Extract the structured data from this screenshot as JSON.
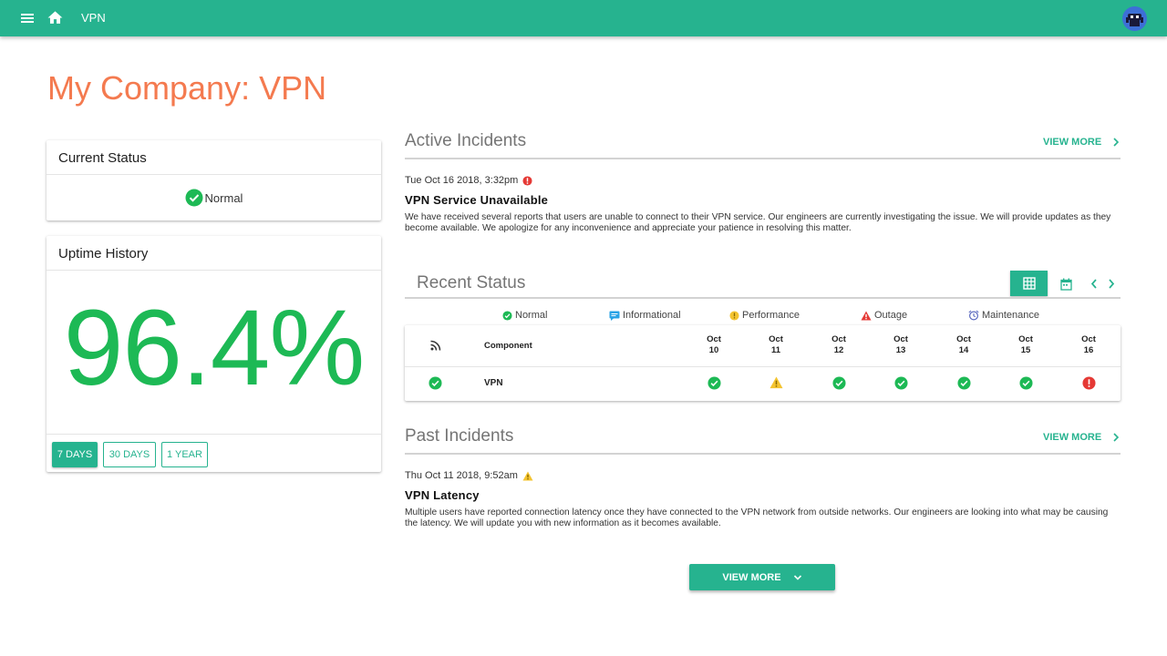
{
  "topbar": {
    "title": "VPN"
  },
  "page": {
    "title": "My Company: VPN"
  },
  "current_status": {
    "heading": "Current Status",
    "value": "Normal"
  },
  "uptime": {
    "heading": "Uptime History",
    "value": "96.4%",
    "ranges": [
      {
        "label": "7 DAYS",
        "active": true
      },
      {
        "label": "30 DAYS",
        "active": false
      },
      {
        "label": "1 YEAR",
        "active": false
      }
    ]
  },
  "active_incidents": {
    "heading": "Active Incidents",
    "view_more": "VIEW MORE",
    "incident": {
      "date": "Tue Oct 16 2018, 3:32pm",
      "title": "VPN Service Unavailable",
      "description": "We have received several reports that users are unable to connect to their VPN service. Our engineers are currently investigating the issue. We will provide updates as they become available. We apologize for any inconvenience and appreciate your patience in resolving this matter."
    }
  },
  "recent_status": {
    "heading": "Recent Status",
    "legend": [
      "Normal",
      "Informational",
      "Performance",
      "Outage",
      "Maintenance"
    ],
    "table": {
      "component_header": "Component",
      "dates": [
        {
          "month": "Oct",
          "day": "10"
        },
        {
          "month": "Oct",
          "day": "11"
        },
        {
          "month": "Oct",
          "day": "12"
        },
        {
          "month": "Oct",
          "day": "13"
        },
        {
          "month": "Oct",
          "day": "14"
        },
        {
          "month": "Oct",
          "day": "15"
        },
        {
          "month": "Oct",
          "day": "16"
        }
      ],
      "rows": [
        {
          "component": "VPN",
          "current": "normal",
          "statuses": [
            "normal",
            "performance",
            "normal",
            "normal",
            "normal",
            "normal",
            "outage"
          ]
        }
      ]
    }
  },
  "past_incidents": {
    "heading": "Past Incidents",
    "view_more": "VIEW MORE",
    "incident": {
      "date": "Thu Oct 11 2018, 9:52am",
      "title": "VPN Latency",
      "description": "Multiple users have reported connection latency once they have connected to the VPN network from outside networks. Our engineers are looking into what may be causing the latency. We will update you with new information as it becomes available."
    }
  },
  "footer": {
    "view_more_button": "VIEW MORE"
  },
  "colors": {
    "brand": "#26b38f",
    "title": "#f47a4f",
    "normal": "#1db955",
    "informational": "#29a3e6",
    "performance": "#f4c430",
    "outage": "#e53935",
    "maintenance": "#5c6bc0"
  }
}
